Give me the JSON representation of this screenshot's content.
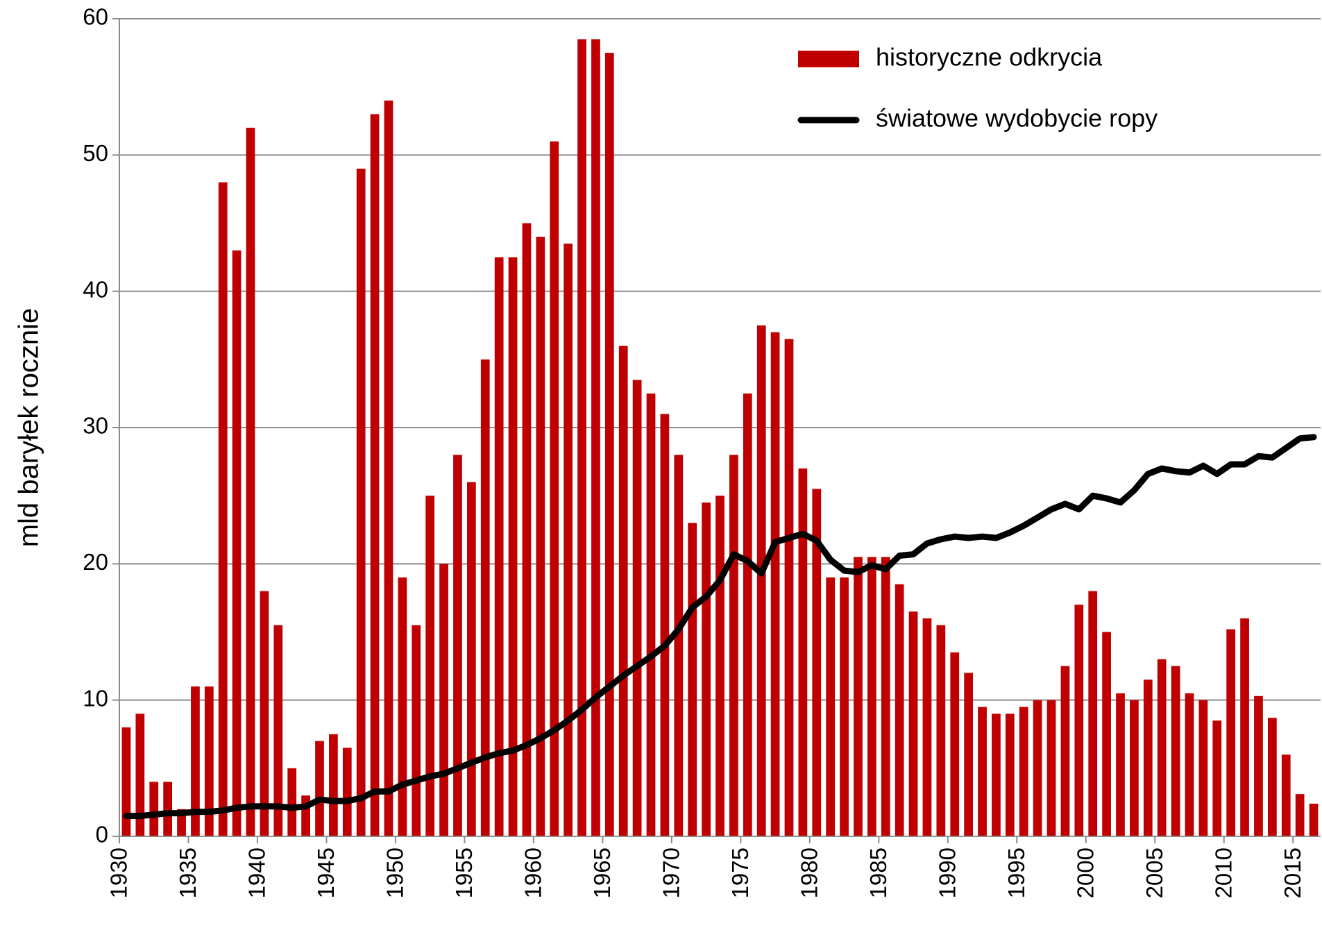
{
  "chart_data": {
    "type": "bar_line",
    "y_label": "mld baryłek rocznie",
    "categories": [
      "1930",
      null,
      null,
      null,
      null,
      "1935",
      null,
      null,
      null,
      null,
      "1940",
      null,
      null,
      null,
      null,
      "1945",
      null,
      null,
      null,
      null,
      "1950",
      null,
      null,
      null,
      null,
      "1955",
      null,
      null,
      null,
      null,
      "1960",
      null,
      null,
      null,
      null,
      "1965",
      null,
      null,
      null,
      null,
      "1970",
      null,
      null,
      null,
      null,
      "1975",
      null,
      null,
      null,
      null,
      "1980",
      null,
      null,
      null,
      null,
      "1985",
      null,
      null,
      null,
      null,
      "1990",
      null,
      null,
      null,
      null,
      "1995",
      null,
      null,
      null,
      null,
      "2000",
      null,
      null,
      null,
      null,
      "2005",
      null,
      null,
      null,
      null,
      "2010",
      null,
      null,
      null,
      null,
      "2015",
      null
    ],
    "series": [
      {
        "name": "historyczne odkrycia",
        "kind": "bar",
        "color": "#c00000",
        "values": [
          8,
          9,
          4,
          4,
          2,
          11,
          11,
          48,
          43,
          52,
          18,
          15.5,
          5,
          3,
          7,
          7.5,
          6.5,
          49,
          53,
          54,
          19,
          15.5,
          25,
          20,
          28,
          26,
          35,
          42.5,
          42.5,
          45,
          44,
          51,
          43.5,
          58.5,
          58.5,
          57.5,
          36,
          33.5,
          32.5,
          31,
          28,
          23,
          24.5,
          25,
          28,
          32.5,
          37.5,
          37,
          36.5,
          27,
          25.5,
          19,
          19,
          20.5,
          20.5,
          20.5,
          18.5,
          16.5,
          16,
          15.5,
          13.5,
          12,
          9.5,
          9,
          9,
          9.5,
          10,
          10,
          12.5,
          17,
          18,
          15,
          10.5,
          10,
          11.5,
          13,
          12.5,
          10.5,
          10,
          8.5,
          15.2,
          16,
          10.3,
          8.7,
          6,
          3.1,
          2.4
        ]
      },
      {
        "name": "światowe wydobycie ropy",
        "kind": "line",
        "color": "#000000",
        "values": [
          1.5,
          1.5,
          1.6,
          1.7,
          1.7,
          1.8,
          1.8,
          1.9,
          2.1,
          2.2,
          2.2,
          2.2,
          2.1,
          2.2,
          2.7,
          2.6,
          2.6,
          2.8,
          3.3,
          3.3,
          3.8,
          4.1,
          4.4,
          4.6,
          5.0,
          5.4,
          5.8,
          6.1,
          6.3,
          6.7,
          7.2,
          7.8,
          8.5,
          9.3,
          10.2,
          11.0,
          11.8,
          12.5,
          13.2,
          14.0,
          15.2,
          16.8,
          17.6,
          18.8,
          20.7,
          20.2,
          19.3,
          21.6,
          21.9,
          22.2,
          21.7,
          20.3,
          19.5,
          19.4,
          19.9,
          19.6,
          20.6,
          20.7,
          21.5,
          21.8,
          22.0,
          21.9,
          22.0,
          21.9,
          22.3,
          22.8,
          23.4,
          24.0,
          24.4,
          24.0,
          25.0,
          24.8,
          24.5,
          25.4,
          26.6,
          27.0,
          26.8,
          26.7,
          27.2,
          26.6,
          27.3,
          27.3,
          27.9,
          27.8,
          28.5,
          29.2,
          29.3
        ]
      }
    ],
    "ylim": [
      0,
      60
    ],
    "yticks": [
      0,
      10,
      20,
      30,
      40,
      50,
      60
    ],
    "grid": true,
    "legend": "top-right"
  }
}
